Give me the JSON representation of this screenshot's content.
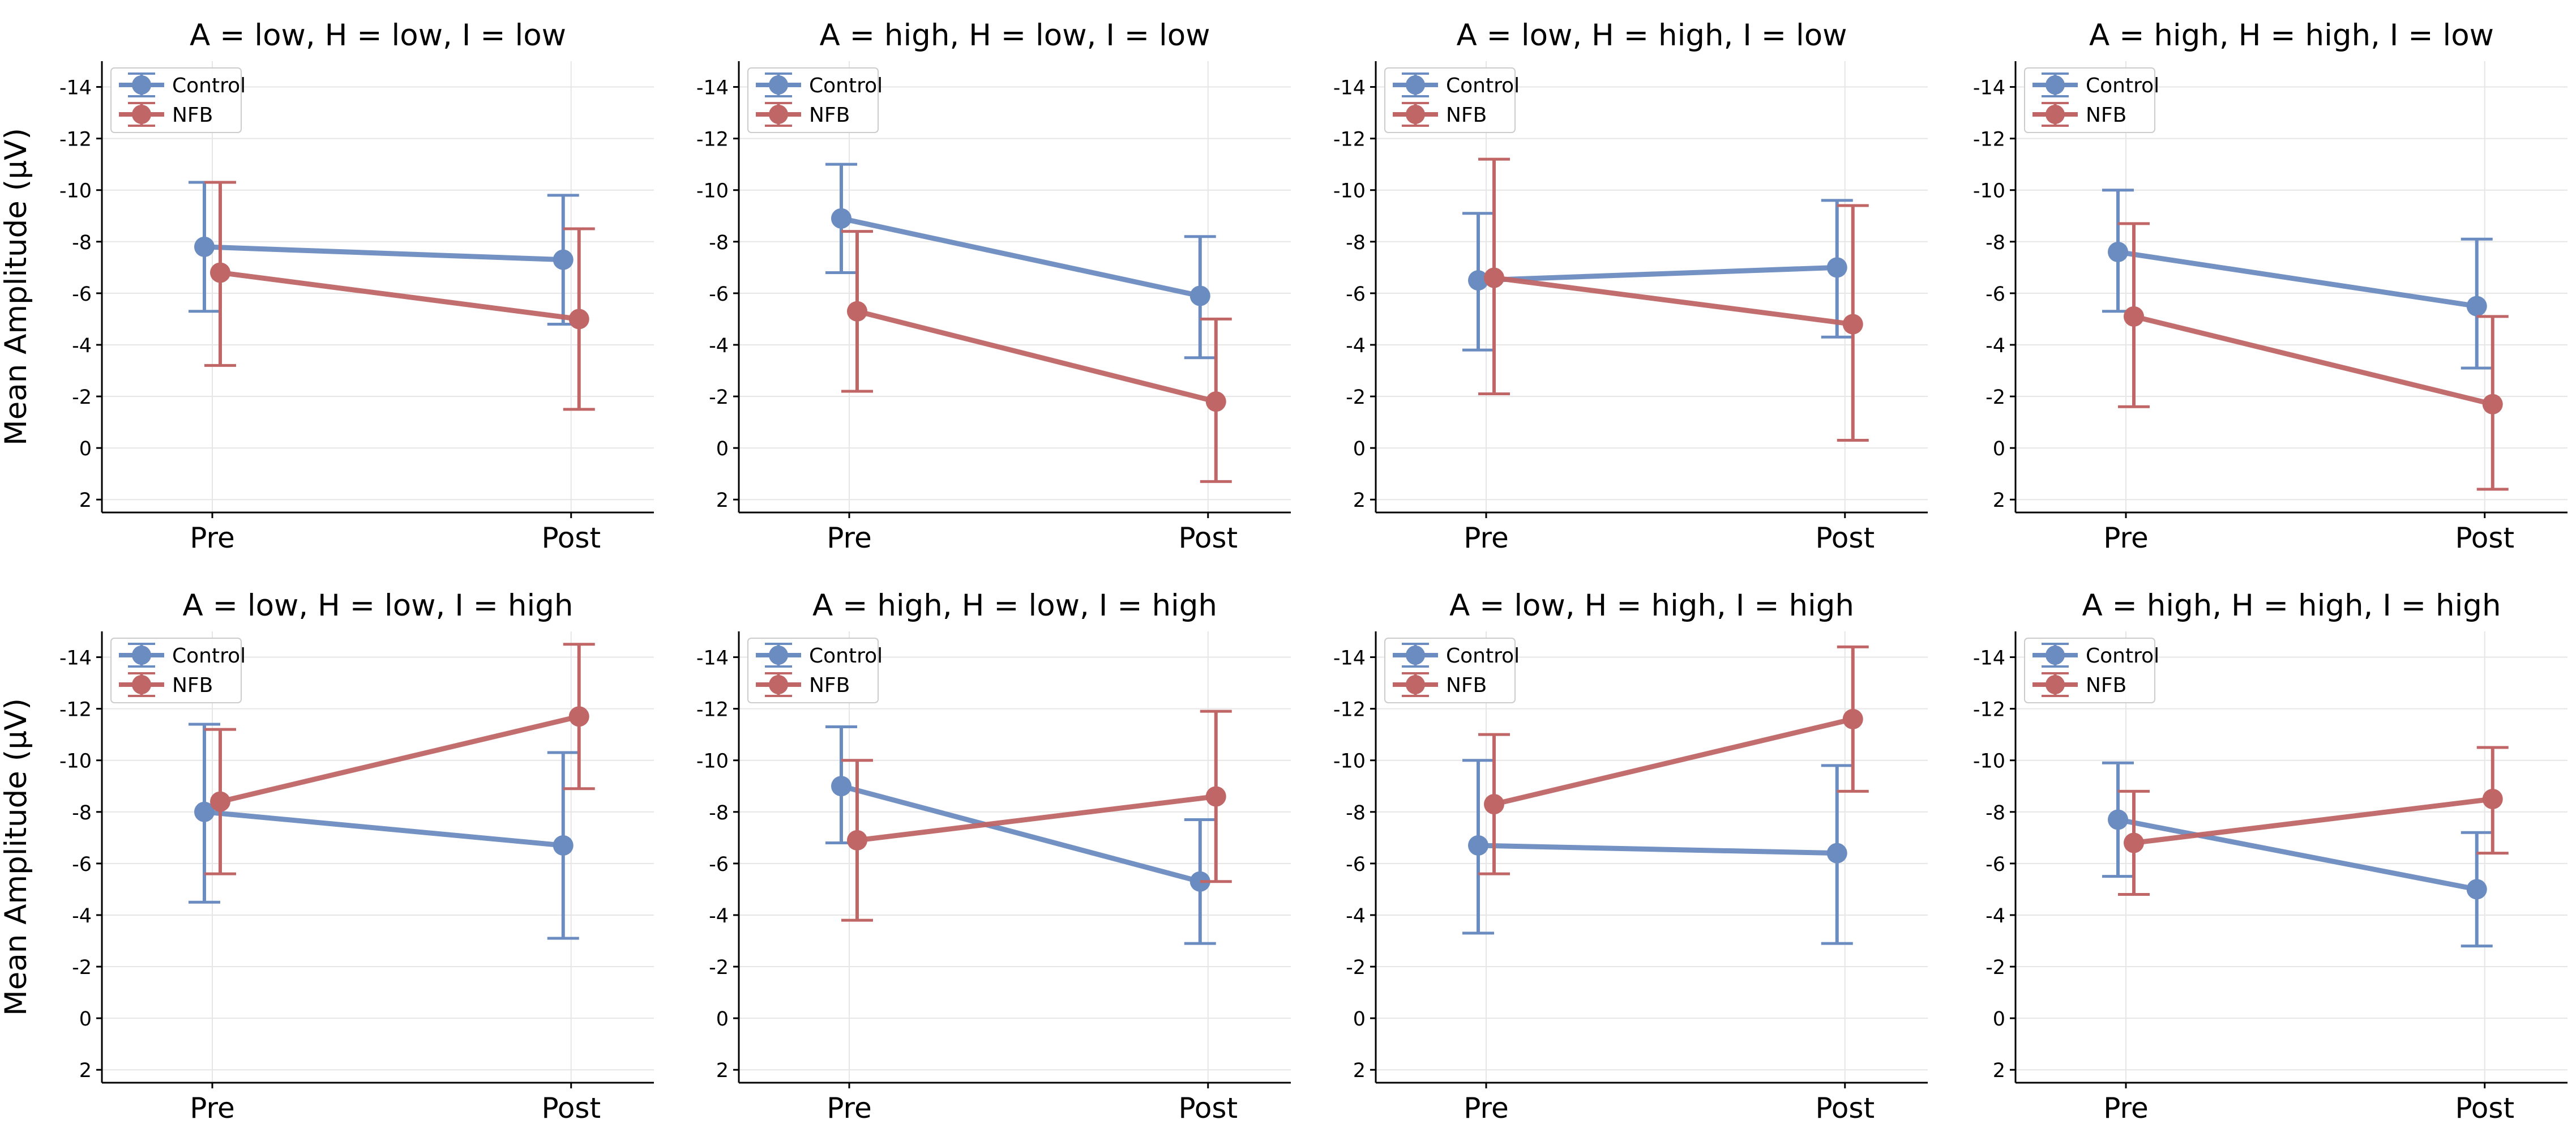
{
  "figure": {
    "ylabel": "Mean Amplitude (μV)"
  },
  "colors": {
    "control": "#6b8cc0",
    "nfb": "#c06666",
    "grid": "#e6e6e6",
    "axis": "#000000"
  },
  "chart_data": [
    {
      "type": "line",
      "title": "A = low, H = low, I = low",
      "categories": [
        "Pre",
        "Post"
      ],
      "xlabel": "",
      "ylabel": "Mean Amplitude (μV)",
      "ylim": [
        2.5,
        -15
      ],
      "yticks": [
        "-14",
        "-12",
        "-10",
        "-8",
        "-6",
        "-4",
        "-2",
        "0",
        "2"
      ],
      "ytick_values": [
        -14,
        -12,
        -10,
        -8,
        -6,
        -4,
        -2,
        0,
        2
      ],
      "grid": true,
      "legend": "upper-left",
      "series": [
        {
          "name": "Control",
          "values": [
            -7.8,
            -7.3
          ],
          "err_low": [
            -5.3,
            -4.8
          ],
          "err_high": [
            -10.3,
            -9.8
          ]
        },
        {
          "name": "NFB",
          "values": [
            -6.8,
            -5.0
          ],
          "err_low": [
            -3.2,
            -1.5
          ],
          "err_high": [
            -10.3,
            -8.5
          ]
        }
      ]
    },
    {
      "type": "line",
      "title": "A = high, H = low, I = low",
      "categories": [
        "Pre",
        "Post"
      ],
      "xlabel": "",
      "ylabel": "",
      "ylim": [
        2.5,
        -15
      ],
      "yticks": [
        "-14",
        "-12",
        "-10",
        "-8",
        "-6",
        "-4",
        "-2",
        "0",
        "2"
      ],
      "ytick_values": [
        -14,
        -12,
        -10,
        -8,
        -6,
        -4,
        -2,
        0,
        2
      ],
      "grid": true,
      "legend": "upper-left",
      "series": [
        {
          "name": "Control",
          "values": [
            -8.9,
            -5.9
          ],
          "err_low": [
            -6.8,
            -3.5
          ],
          "err_high": [
            -11.0,
            -8.2
          ]
        },
        {
          "name": "NFB",
          "values": [
            -5.3,
            -1.8
          ],
          "err_low": [
            -2.2,
            1.3
          ],
          "err_high": [
            -8.4,
            -5.0
          ]
        }
      ]
    },
    {
      "type": "line",
      "title": "A = low, H = high, I = low",
      "categories": [
        "Pre",
        "Post"
      ],
      "xlabel": "",
      "ylabel": "",
      "ylim": [
        2.5,
        -15
      ],
      "yticks": [
        "-14",
        "-12",
        "-10",
        "-8",
        "-6",
        "-4",
        "-2",
        "0",
        "2"
      ],
      "ytick_values": [
        -14,
        -12,
        -10,
        -8,
        -6,
        -4,
        -2,
        0,
        2
      ],
      "grid": true,
      "legend": "upper-left",
      "series": [
        {
          "name": "Control",
          "values": [
            -6.5,
            -7.0
          ],
          "err_low": [
            -3.8,
            -4.3
          ],
          "err_high": [
            -9.1,
            -9.6
          ]
        },
        {
          "name": "NFB",
          "values": [
            -6.6,
            -4.8
          ],
          "err_low": [
            -2.1,
            -0.3
          ],
          "err_high": [
            -11.2,
            -9.4
          ]
        }
      ]
    },
    {
      "type": "line",
      "title": "A = high, H = high, I = low",
      "categories": [
        "Pre",
        "Post"
      ],
      "xlabel": "",
      "ylabel": "",
      "ylim": [
        2.5,
        -15
      ],
      "yticks": [
        "-14",
        "-12",
        "-10",
        "-8",
        "-6",
        "-4",
        "-2",
        "0",
        "2"
      ],
      "ytick_values": [
        -14,
        -12,
        -10,
        -8,
        -6,
        -4,
        -2,
        0,
        2
      ],
      "grid": true,
      "legend": "upper-left",
      "series": [
        {
          "name": "Control",
          "values": [
            -7.6,
            -5.5
          ],
          "err_low": [
            -5.3,
            -3.1
          ],
          "err_high": [
            -10.0,
            -8.1
          ]
        },
        {
          "name": "NFB",
          "values": [
            -5.1,
            -1.7
          ],
          "err_low": [
            -1.6,
            1.6
          ],
          "err_high": [
            -8.7,
            -5.1
          ]
        }
      ]
    },
    {
      "type": "line",
      "title": "A = low, H = low, I = high",
      "categories": [
        "Pre",
        "Post"
      ],
      "xlabel": "",
      "ylabel": "Mean Amplitude (μV)",
      "ylim": [
        2.5,
        -15
      ],
      "yticks": [
        "-14",
        "-12",
        "-10",
        "-8",
        "-6",
        "-4",
        "-2",
        "0",
        "2"
      ],
      "ytick_values": [
        -14,
        -12,
        -10,
        -8,
        -6,
        -4,
        -2,
        0,
        2
      ],
      "grid": true,
      "legend": "upper-left",
      "series": [
        {
          "name": "Control",
          "values": [
            -8.0,
            -6.7
          ],
          "err_low": [
            -4.5,
            -3.1
          ],
          "err_high": [
            -11.4,
            -10.3
          ]
        },
        {
          "name": "NFB",
          "values": [
            -8.4,
            -11.7
          ],
          "err_low": [
            -5.6,
            -8.9
          ],
          "err_high": [
            -11.2,
            -14.5
          ]
        }
      ]
    },
    {
      "type": "line",
      "title": "A = high, H = low, I = high",
      "categories": [
        "Pre",
        "Post"
      ],
      "xlabel": "",
      "ylabel": "",
      "ylim": [
        2.5,
        -15
      ],
      "yticks": [
        "-14",
        "-12",
        "-10",
        "-8",
        "-6",
        "-4",
        "-2",
        "0",
        "2"
      ],
      "ytick_values": [
        -14,
        -12,
        -10,
        -8,
        -6,
        -4,
        -2,
        0,
        2
      ],
      "grid": true,
      "legend": "upper-left",
      "series": [
        {
          "name": "Control",
          "values": [
            -9.0,
            -5.3
          ],
          "err_low": [
            -6.8,
            -2.9
          ],
          "err_high": [
            -11.3,
            -7.7
          ]
        },
        {
          "name": "NFB",
          "values": [
            -6.9,
            -8.6
          ],
          "err_low": [
            -3.8,
            -5.3
          ],
          "err_high": [
            -10.0,
            -11.9
          ]
        }
      ]
    },
    {
      "type": "line",
      "title": "A = low, H = high, I = high",
      "categories": [
        "Pre",
        "Post"
      ],
      "xlabel": "",
      "ylabel": "",
      "ylim": [
        2.5,
        -15
      ],
      "yticks": [
        "-14",
        "-12",
        "-10",
        "-8",
        "-6",
        "-4",
        "-2",
        "0",
        "2"
      ],
      "ytick_values": [
        -14,
        -12,
        -10,
        -8,
        -6,
        -4,
        -2,
        0,
        2
      ],
      "grid": true,
      "legend": "upper-left",
      "series": [
        {
          "name": "Control",
          "values": [
            -6.7,
            -6.4
          ],
          "err_low": [
            -3.3,
            -2.9
          ],
          "err_high": [
            -10.0,
            -9.8
          ]
        },
        {
          "name": "NFB",
          "values": [
            -8.3,
            -11.6
          ],
          "err_low": [
            -5.6,
            -8.8
          ],
          "err_high": [
            -11.0,
            -14.4
          ]
        }
      ]
    },
    {
      "type": "line",
      "title": "A = high, H = high, I = high",
      "categories": [
        "Pre",
        "Post"
      ],
      "xlabel": "",
      "ylabel": "",
      "ylim": [
        2.5,
        -15
      ],
      "yticks": [
        "-14",
        "-12",
        "-10",
        "-8",
        "-6",
        "-4",
        "-2",
        "0",
        "2"
      ],
      "ytick_values": [
        -14,
        -12,
        -10,
        -8,
        -6,
        -4,
        -2,
        0,
        2
      ],
      "grid": true,
      "legend": "upper-left",
      "series": [
        {
          "name": "Control",
          "values": [
            -7.7,
            -5.0
          ],
          "err_low": [
            -5.5,
            -2.8
          ],
          "err_high": [
            -9.9,
            -7.2
          ]
        },
        {
          "name": "NFB",
          "values": [
            -6.8,
            -8.5
          ],
          "err_low": [
            -4.8,
            -6.4
          ],
          "err_high": [
            -8.8,
            -10.5
          ]
        }
      ]
    }
  ]
}
